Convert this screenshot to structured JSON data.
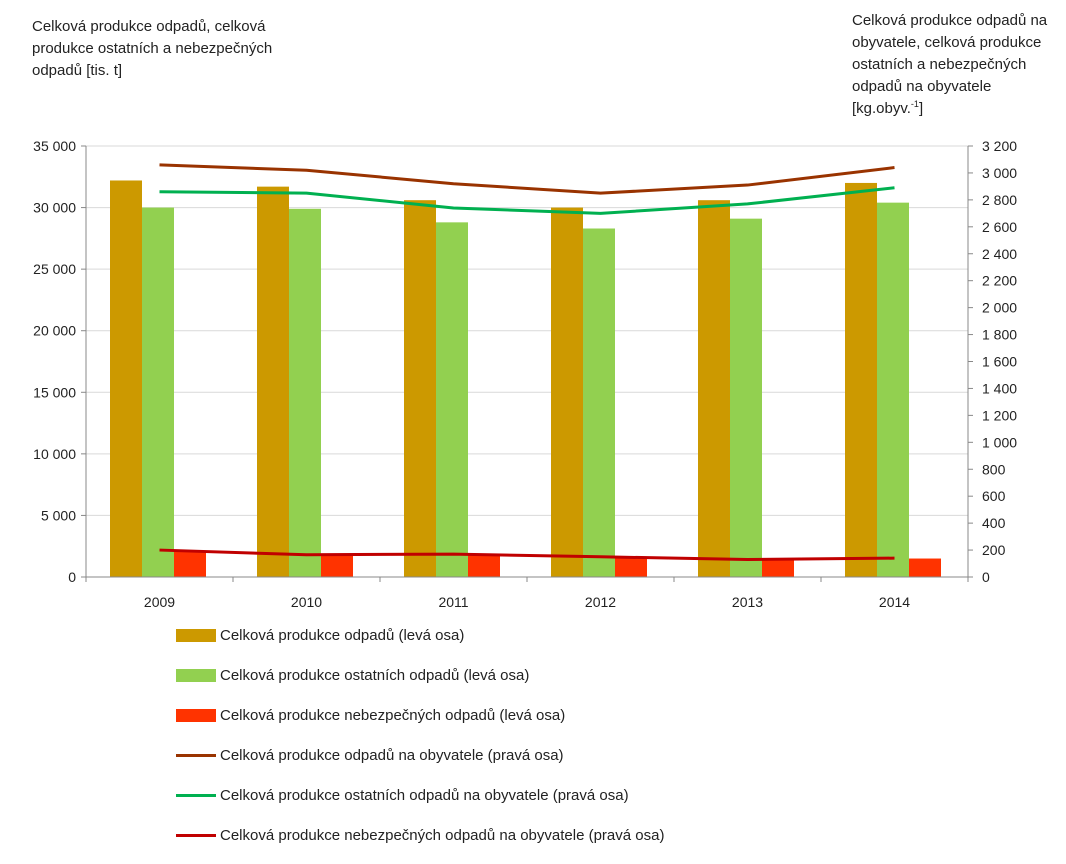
{
  "left_axis_title": "Celková produkce odpadů, celková produkce ostatních a nebezpečných odpadů [tis. t]",
  "right_axis_title_main": "Celková produkce odpadů na obyvatele, celková produkce ostatních a nebezpečných odpadů na obyvatele [kg.obyv.",
  "right_axis_title_sup": "-1",
  "right_axis_title_end": "]",
  "chart_data": {
    "type": "bar",
    "categories": [
      "2009",
      "2010",
      "2011",
      "2012",
      "2013",
      "2014"
    ],
    "left_axis": {
      "ylim": [
        0,
        35000
      ],
      "ticks": [
        "0",
        "5 000",
        "10 000",
        "15 000",
        "20 000",
        "25 000",
        "30 000",
        "35 000"
      ],
      "tick_values": [
        0,
        5000,
        10000,
        15000,
        20000,
        25000,
        30000,
        35000
      ]
    },
    "right_axis": {
      "ylim": [
        0,
        3200
      ],
      "ticks": [
        "0",
        "200",
        "400",
        "600",
        "800",
        "1 000",
        "1 200",
        "1 400",
        "1 600",
        "1 800",
        "2 000",
        "2 200",
        "2 400",
        "2 600",
        "2 800",
        "3 000",
        "3 200"
      ],
      "tick_values": [
        0,
        200,
        400,
        600,
        800,
        1000,
        1200,
        1400,
        1600,
        1800,
        2000,
        2200,
        2400,
        2600,
        2800,
        3000,
        3200
      ]
    },
    "grid": true,
    "legend_position": "bottom",
    "bar_series": [
      {
        "name": "Celková produkce odpadů (levá osa)",
        "color": "#cc9900",
        "values": [
          32200,
          31700,
          30600,
          30000,
          30600,
          32000
        ]
      },
      {
        "name": "Celková produkce ostatních odpadů (levá osa)",
        "color": "#92d050",
        "values": [
          30000,
          29900,
          28800,
          28300,
          29100,
          30400
        ]
      },
      {
        "name": "Celková produkce nebezpečných odpadů (levá osa)",
        "color": "#ff3300",
        "values": [
          2100,
          1800,
          1800,
          1600,
          1500,
          1500
        ]
      }
    ],
    "line_series": [
      {
        "name": "Celková produkce odpadů na obyvatele (pravá osa)",
        "color": "#993300",
        "values": [
          3060,
          3020,
          2920,
          2850,
          2910,
          3040
        ]
      },
      {
        "name": "Celková produkce ostatních odpadů na obyvatele (pravá osa)",
        "color": "#00b050",
        "values": [
          2860,
          2850,
          2740,
          2700,
          2770,
          2890
        ]
      },
      {
        "name": "Celková produkce nebezpečných odpadů na obyvatele (pravá osa)",
        "color": "#c00000",
        "values": [
          200,
          165,
          170,
          150,
          130,
          140
        ]
      }
    ]
  }
}
